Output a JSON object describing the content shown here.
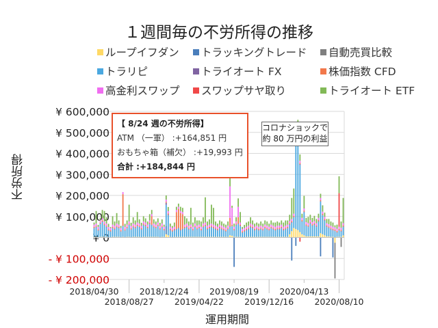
{
  "chart_data": {
    "type": "bar",
    "stacked": true,
    "title": "１週間毎の不労所得の推移",
    "xlabel": "運用期間",
    "ylabel": "不労所得",
    "ylim": [
      -200000,
      600000
    ],
    "yticks": [
      600000,
      500000,
      400000,
      300000,
      200000,
      100000,
      0,
      -100000,
      -200000
    ],
    "ytick_labels": [
      "¥ 600,000",
      "¥ 500,000",
      "¥ 400,000",
      "¥ 300,000",
      "¥ 200,000",
      "¥ 100,000",
      "¥ 0",
      "- ¥ 100,000",
      "- ¥ 200,000"
    ],
    "xtick_labels": [
      "2018/04/30",
      "2018/08/27",
      "2018/12/24",
      "2019/04/22",
      "2019/08/19",
      "2019/12/16",
      "2020/04/13",
      "2020/08/10"
    ],
    "x_start": "2018/04/30",
    "x_end": "2020/08/24",
    "x_interval": "1 week",
    "grid": true,
    "legend_position": "top",
    "annotations": {
      "box_title": "【 8/24 週の不労所得】",
      "box_line1": "ATM （一軍） :+164,851 円",
      "box_line2": "おもちゃ箱（補欠） :+19,993 円",
      "box_total": "合計 :+184,844 円",
      "callout_line1": "コロナショックで",
      "callout_line2": "約 80 万円の利益"
    },
    "series": [
      {
        "name": "ループイフダン",
        "color": "#ffd966",
        "values": [
          3000,
          3000,
          2000,
          3000,
          3000,
          3000,
          3000,
          2000,
          2000,
          3000,
          3000,
          3000,
          3000,
          2000,
          3000,
          2000,
          3000,
          3000,
          2000,
          3000,
          3000,
          3000,
          3000,
          2000,
          3000,
          3000,
          3000,
          3000,
          3000,
          3000,
          3000,
          3000,
          2000,
          3000,
          3000,
          15000,
          10000,
          3000,
          2000,
          3000,
          3000,
          3000,
          3000,
          3000,
          3000,
          3000,
          3000,
          3000,
          3000,
          3000,
          3000,
          3000,
          3000,
          3000,
          3000,
          3000,
          3000,
          3000,
          3000,
          3000,
          3000,
          3000,
          3000,
          3000,
          3000,
          3000,
          10000,
          8000,
          3000,
          3000,
          3000,
          3000,
          2000,
          2000,
          3000,
          3000,
          3000,
          3000,
          3000,
          3000,
          3000,
          3000,
          3000,
          3000,
          3000,
          3000,
          3000,
          3000,
          3000,
          3000,
          3000,
          3000,
          3000,
          3000,
          3000,
          15000,
          30000,
          45000,
          40000,
          35000,
          25000,
          15000,
          10000,
          5000,
          5000,
          5000,
          5000,
          5000,
          5000,
          5000,
          20000,
          15000,
          10000,
          5000,
          5000,
          3000,
          3000,
          -25000,
          3000,
          3000,
          3000,
          10000
        ]
      },
      {
        "name": "トラッキングトレード",
        "color": "#4a7ebb",
        "values": [
          0,
          0,
          0,
          0,
          0,
          0,
          0,
          0,
          0,
          0,
          0,
          0,
          0,
          0,
          0,
          0,
          0,
          0,
          0,
          0,
          0,
          0,
          0,
          0,
          0,
          0,
          0,
          0,
          0,
          0,
          0,
          0,
          0,
          0,
          0,
          40000,
          0,
          0,
          0,
          0,
          0,
          0,
          0,
          0,
          0,
          0,
          0,
          0,
          0,
          0,
          0,
          0,
          0,
          0,
          0,
          0,
          0,
          0,
          0,
          0,
          0,
          0,
          0,
          0,
          0,
          0,
          0,
          0,
          -140000,
          0,
          0,
          0,
          0,
          0,
          0,
          0,
          0,
          0,
          0,
          0,
          0,
          0,
          0,
          0,
          0,
          0,
          0,
          0,
          0,
          0,
          0,
          0,
          0,
          0,
          0,
          0,
          -110000,
          0,
          -40000,
          0,
          0,
          0,
          0,
          0,
          0,
          0,
          0,
          0,
          0,
          0,
          -90000,
          0,
          0,
          0,
          0,
          0,
          -95000,
          0,
          0,
          0,
          0,
          0
        ]
      },
      {
        "name": "自動売買比較",
        "color": "#7f7f7f",
        "values": [
          0,
          0,
          0,
          0,
          0,
          0,
          0,
          0,
          0,
          0,
          0,
          0,
          0,
          0,
          0,
          0,
          0,
          0,
          0,
          0,
          0,
          0,
          0,
          0,
          0,
          0,
          0,
          0,
          0,
          0,
          0,
          0,
          0,
          0,
          0,
          0,
          0,
          0,
          0,
          0,
          0,
          0,
          0,
          0,
          0,
          0,
          0,
          0,
          0,
          0,
          0,
          0,
          0,
          0,
          0,
          0,
          0,
          0,
          0,
          0,
          0,
          0,
          0,
          0,
          0,
          0,
          0,
          0,
          0,
          0,
          0,
          0,
          0,
          0,
          0,
          0,
          0,
          0,
          0,
          0,
          0,
          0,
          0,
          0,
          0,
          0,
          0,
          0,
          0,
          0,
          0,
          0,
          0,
          0,
          0,
          0,
          0,
          0,
          0,
          0,
          0,
          0,
          0,
          0,
          0,
          0,
          0,
          0,
          0,
          0,
          0,
          0,
          0,
          0,
          0,
          0,
          0,
          -170000,
          0,
          0,
          -45000,
          0
        ]
      },
      {
        "name": "トラリピ",
        "color": "#4ba8e0",
        "values": [
          40000,
          45000,
          30000,
          60000,
          70000,
          55000,
          45000,
          30000,
          25000,
          40000,
          35000,
          45000,
          40000,
          25000,
          50000,
          30000,
          40000,
          55000,
          35000,
          45000,
          40000,
          50000,
          45000,
          35000,
          55000,
          50000,
          40000,
          60000,
          55000,
          45000,
          40000,
          50000,
          35000,
          45000,
          30000,
          100000,
          95000,
          30000,
          25000,
          30000,
          35000,
          40000,
          30000,
          35000,
          40000,
          45000,
          35000,
          40000,
          30000,
          45000,
          35000,
          40000,
          30000,
          45000,
          50000,
          35000,
          40000,
          45000,
          40000,
          35000,
          30000,
          40000,
          35000,
          30000,
          25000,
          35000,
          40000,
          45000,
          30000,
          55000,
          60000,
          50000,
          20000,
          25000,
          30000,
          35000,
          45000,
          40000,
          30000,
          35000,
          30000,
          35000,
          30000,
          40000,
          35000,
          30000,
          40000,
          35000,
          30000,
          35000,
          35000,
          40000,
          30000,
          35000,
          40000,
          45000,
          40000,
          50000,
          430000,
          400000,
          320000,
          60000,
          110000,
          50000,
          45000,
          60000,
          50000,
          55000,
          45000,
          70000,
          150000,
          90000,
          70000,
          45000,
          40000,
          35000,
          30000,
          30000,
          20000,
          30000,
          25000,
          40000
        ]
      },
      {
        "name": "トライオート FX",
        "color": "#8064a2",
        "values": [
          3000,
          3000,
          3000,
          3000,
          3000,
          3000,
          3000,
          3000,
          3000,
          3000,
          3000,
          3000,
          3000,
          3000,
          3000,
          3000,
          3000,
          3000,
          3000,
          3000,
          3000,
          3000,
          3000,
          3000,
          3000,
          3000,
          3000,
          3000,
          3000,
          3000,
          3000,
          3000,
          3000,
          3000,
          3000,
          10000,
          5000,
          3000,
          3000,
          3000,
          3000,
          3000,
          3000,
          3000,
          3000,
          3000,
          3000,
          3000,
          3000,
          3000,
          3000,
          3000,
          3000,
          3000,
          3000,
          3000,
          3000,
          3000,
          3000,
          3000,
          3000,
          3000,
          3000,
          3000,
          3000,
          3000,
          3000,
          3000,
          3000,
          3000,
          3000,
          3000,
          3000,
          3000,
          3000,
          3000,
          3000,
          3000,
          3000,
          3000,
          3000,
          3000,
          3000,
          3000,
          3000,
          3000,
          3000,
          3000,
          3000,
          3000,
          3000,
          3000,
          3000,
          3000,
          3000,
          3000,
          3000,
          3000,
          5000,
          5000,
          5000,
          3000,
          3000,
          3000,
          3000,
          3000,
          3000,
          3000,
          3000,
          3000,
          3000,
          3000,
          3000,
          3000,
          3000,
          3000,
          3000,
          3000,
          3000,
          3000,
          3000,
          3000
        ]
      },
      {
        "name": "株価指数 CFD",
        "color": "#f2784b",
        "values": [
          5000,
          5000,
          5000,
          5000,
          5000,
          5000,
          5000,
          5000,
          5000,
          5000,
          5000,
          5000,
          5000,
          5000,
          150000,
          5000,
          5000,
          5000,
          5000,
          5000,
          5000,
          5000,
          5000,
          5000,
          5000,
          5000,
          5000,
          5000,
          40000,
          5000,
          5000,
          5000,
          5000,
          5000,
          5000,
          5000,
          5000,
          5000,
          5000,
          5000,
          80000,
          90000,
          80000,
          70000,
          5000,
          5000,
          5000,
          5000,
          5000,
          5000,
          5000,
          5000,
          5000,
          5000,
          5000,
          5000,
          5000,
          5000,
          5000,
          5000,
          5000,
          5000,
          5000,
          5000,
          5000,
          5000,
          40000,
          5000,
          5000,
          5000,
          30000,
          5000,
          5000,
          5000,
          5000,
          5000,
          5000,
          5000,
          5000,
          5000,
          5000,
          5000,
          5000,
          5000,
          5000,
          5000,
          5000,
          5000,
          5000,
          5000,
          5000,
          5000,
          5000,
          5000,
          5000,
          5000,
          5000,
          5000,
          5000,
          30000,
          5000,
          5000,
          5000,
          5000,
          5000,
          5000,
          5000,
          5000,
          5000,
          5000,
          5000,
          5000,
          5000,
          5000,
          5000,
          5000,
          5000,
          5000,
          5000,
          5000,
          5000,
          5000
        ]
      },
      {
        "name": "高金利スワップ",
        "color": "#f06ef0",
        "values": [
          10000,
          10000,
          10000,
          10000,
          10000,
          10000,
          10000,
          10000,
          10000,
          10000,
          10000,
          10000,
          10000,
          10000,
          10000,
          10000,
          10000,
          10000,
          10000,
          10000,
          10000,
          10000,
          10000,
          10000,
          10000,
          10000,
          10000,
          10000,
          10000,
          10000,
          10000,
          10000,
          10000,
          10000,
          10000,
          10000,
          10000,
          10000,
          10000,
          10000,
          10000,
          10000,
          10000,
          10000,
          10000,
          10000,
          10000,
          10000,
          10000,
          10000,
          10000,
          10000,
          10000,
          10000,
          10000,
          10000,
          10000,
          10000,
          10000,
          10000,
          10000,
          10000,
          10000,
          10000,
          10000,
          10000,
          150000,
          80000,
          10000,
          10000,
          50000,
          10000,
          10000,
          10000,
          10000,
          10000,
          10000,
          10000,
          10000,
          10000,
          10000,
          10000,
          10000,
          10000,
          10000,
          10000,
          10000,
          10000,
          10000,
          10000,
          10000,
          10000,
          10000,
          10000,
          10000,
          10000,
          10000,
          10000,
          20000,
          40000,
          10000,
          10000,
          10000,
          10000,
          10000,
          10000,
          10000,
          10000,
          10000,
          10000,
          10000,
          10000,
          10000,
          10000,
          10000,
          10000,
          10000,
          10000,
          10000,
          10000,
          10000,
          10000
        ]
      },
      {
        "name": "スワップサヤ取り",
        "color": "#f04848",
        "values": [
          0,
          0,
          0,
          0,
          0,
          0,
          0,
          0,
          0,
          0,
          0,
          0,
          0,
          0,
          0,
          0,
          0,
          0,
          0,
          0,
          0,
          0,
          0,
          0,
          0,
          0,
          0,
          0,
          0,
          0,
          0,
          0,
          0,
          0,
          0,
          0,
          0,
          0,
          0,
          0,
          0,
          0,
          0,
          0,
          0,
          0,
          0,
          0,
          0,
          0,
          0,
          0,
          0,
          0,
          0,
          0,
          0,
          0,
          0,
          0,
          0,
          0,
          0,
          0,
          0,
          0,
          0,
          0,
          0,
          0,
          0,
          0,
          0,
          0,
          0,
          0,
          0,
          0,
          0,
          0,
          0,
          0,
          0,
          0,
          0,
          0,
          0,
          0,
          0,
          0,
          0,
          0,
          0,
          0,
          0,
          0,
          0,
          0,
          0,
          20000,
          -20000,
          0,
          0,
          0,
          0,
          0,
          0,
          0,
          0,
          0,
          0,
          0,
          0,
          0,
          0,
          0,
          0,
          0,
          0,
          160000,
          0,
          0
        ]
      },
      {
        "name": "トライオート ETF",
        "color": "#82b957",
        "values": [
          10000,
          60000,
          10000,
          10000,
          40000,
          50000,
          30000,
          15000,
          5000,
          40000,
          20000,
          50000,
          20000,
          10000,
          0,
          15000,
          20000,
          80000,
          15000,
          30000,
          20000,
          50000,
          20000,
          15000,
          25000,
          20000,
          15000,
          30000,
          20000,
          20000,
          15000,
          20000,
          15000,
          20000,
          10000,
          20000,
          20000,
          15000,
          10000,
          20000,
          15000,
          15000,
          20000,
          20000,
          40000,
          25000,
          20000,
          80000,
          20000,
          30000,
          25000,
          20000,
          25000,
          30000,
          120000,
          20000,
          25000,
          90000,
          80000,
          20000,
          15000,
          20000,
          20000,
          15000,
          15000,
          20000,
          50000,
          10000,
          15000,
          20000,
          40000,
          50000,
          10000,
          15000,
          20000,
          20000,
          30000,
          20000,
          15000,
          15000,
          15000,
          20000,
          15000,
          20000,
          20000,
          15000,
          20000,
          15000,
          20000,
          20000,
          15000,
          20000,
          20000,
          25000,
          20000,
          30000,
          100000,
          120000,
          50000,
          30000,
          30000,
          20000,
          60000,
          20000,
          30000,
          25000,
          20000,
          25000,
          20000,
          20000,
          20000,
          30000,
          20000,
          20000,
          25000,
          20000,
          20000,
          10000,
          20000,
          80000,
          30000,
          120000
        ]
      }
    ]
  }
}
